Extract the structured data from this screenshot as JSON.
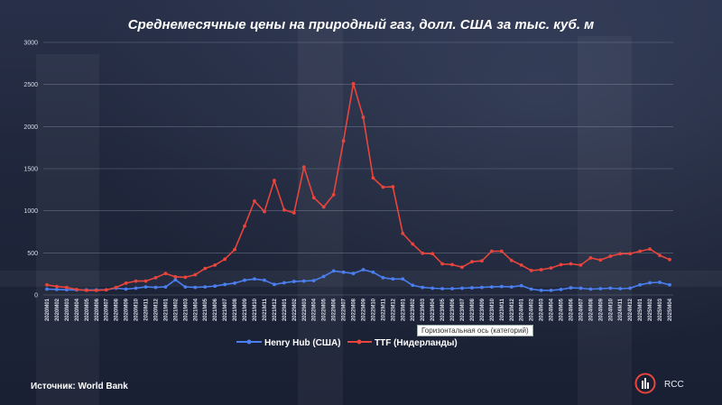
{
  "header": {
    "title": "Среднемесячные цены на природный газ, долл. США за тыс. куб. м"
  },
  "footer": {
    "source": "Источник: World Bank",
    "brand": "RCC"
  },
  "tooltip": {
    "text": "Горизонтальная ось (категорий)"
  },
  "colors": {
    "henry_hub": "#4a7ff0",
    "ttf": "#e8453c",
    "grid": "#9aa3b5",
    "background": "#1e2438"
  },
  "chart_data": {
    "type": "line",
    "title": "Среднемесячные цены на природный газ, долл. США за тыс. куб. м",
    "xlabel": "",
    "ylabel": "",
    "ylim": [
      0,
      3000
    ],
    "yticks": [
      0,
      500,
      1000,
      1500,
      2000,
      2500,
      3000
    ],
    "grid": true,
    "legend_position": "bottom",
    "categories": [
      "2020M01",
      "2020M02",
      "2020M03",
      "2020M04",
      "2020M05",
      "2020M06",
      "2020M07",
      "2020M08",
      "2020M09",
      "2020M10",
      "2020M11",
      "2020M12",
      "2021M01",
      "2021M02",
      "2021M03",
      "2021M04",
      "2021M05",
      "2021M06",
      "2021M07",
      "2021M08",
      "2021M09",
      "2021M10",
      "2021M11",
      "2021M12",
      "2022M01",
      "2022M02",
      "2022M03",
      "2022M04",
      "2022M05",
      "2022M06",
      "2022M07",
      "2022M08",
      "2022M09",
      "2022M10",
      "2022M11",
      "2022M12",
      "2023M01",
      "2023M02",
      "2023M03",
      "2023M04",
      "2023M05",
      "2023M06",
      "2023M07",
      "2023M08",
      "2023M09",
      "2023M10",
      "2023M11",
      "2023M12",
      "2024M01",
      "2024M02",
      "2024M03",
      "2024M04",
      "2024M05",
      "2024M06",
      "2024M07",
      "2024M08",
      "2024M09",
      "2024M10",
      "2024M11",
      "2024M12",
      "2025M01",
      "2025M02",
      "2025M03",
      "2025M04"
    ],
    "series": [
      {
        "name": "Henry Hub (США)",
        "values": [
          70,
          65,
          62,
          60,
          60,
          60,
          62,
          80,
          70,
          80,
          95,
          90,
          95,
          180,
          95,
          90,
          95,
          105,
          125,
          140,
          175,
          190,
          175,
          125,
          145,
          160,
          165,
          170,
          220,
          285,
          270,
          255,
          300,
          270,
          205,
          190,
          190,
          115,
          90,
          80,
          75,
          75,
          80,
          85,
          90,
          95,
          100,
          95,
          110,
          70,
          55,
          55,
          65,
          85,
          80,
          70,
          75,
          80,
          75,
          80,
          120,
          145,
          150,
          120
        ]
      },
      {
        "name": "TTF (Нидерланды)",
        "values": [
          120,
          100,
          90,
          65,
          55,
          55,
          60,
          90,
          140,
          165,
          165,
          205,
          255,
          215,
          210,
          240,
          315,
          355,
          425,
          540,
          820,
          1115,
          990,
          1360,
          1010,
          975,
          1520,
          1155,
          1045,
          1190,
          1830,
          2510,
          2110,
          1390,
          1280,
          1285,
          730,
          605,
          495,
          490,
          370,
          360,
          330,
          395,
          405,
          520,
          520,
          410,
          355,
          290,
          300,
          320,
          360,
          370,
          355,
          440,
          415,
          460,
          490,
          490,
          520,
          545,
          470,
          420
        ]
      }
    ]
  }
}
